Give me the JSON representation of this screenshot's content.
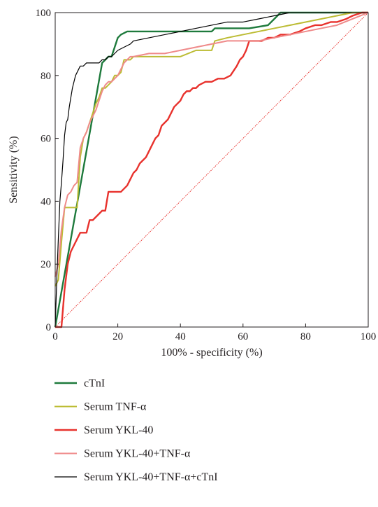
{
  "chart_data": {
    "type": "line",
    "xlabel": "100% - specificity (%)",
    "ylabel": "Sensitivity (%)",
    "xlim": [
      0,
      100
    ],
    "ylim": [
      0,
      100
    ],
    "xticks": [
      0,
      20,
      40,
      60,
      80,
      100
    ],
    "yticks": [
      0,
      20,
      40,
      60,
      80,
      100
    ],
    "xtick_labels": [
      "0",
      "20",
      "40",
      "60",
      "80",
      "100"
    ],
    "ytick_labels": [
      "0",
      "20",
      "40",
      "60",
      "80",
      "100"
    ],
    "grid": false,
    "legend_position": "bottom",
    "reference_line": {
      "x": [
        0,
        100
      ],
      "y": [
        0,
        100
      ],
      "color": "#e8322d",
      "style": "dotted"
    },
    "series": [
      {
        "name": "cTnI",
        "color": "#1e7a3c",
        "x": [
          0,
          15,
          17,
          18,
          20,
          21,
          23,
          30,
          40,
          50,
          51,
          60,
          62,
          68,
          70,
          72,
          75,
          80,
          100
        ],
        "y": [
          0,
          84,
          86,
          86,
          92,
          93,
          94,
          94,
          94,
          94,
          95,
          95,
          95,
          96,
          98,
          100,
          100,
          100,
          100
        ]
      },
      {
        "name": "Serum TNF-α",
        "color": "#bcbc34",
        "x": [
          0,
          1,
          2,
          3,
          5,
          7,
          8,
          9,
          10,
          11,
          12,
          13,
          14,
          15,
          16,
          17,
          18,
          19,
          20,
          21,
          22,
          24,
          25,
          28,
          30,
          35,
          40,
          45,
          50,
          51,
          55,
          60,
          65,
          70,
          75,
          80,
          85,
          90,
          95,
          100
        ],
        "y": [
          13,
          15,
          27,
          38,
          38,
          38,
          54,
          60,
          62,
          65,
          68,
          71,
          73,
          76,
          76,
          77,
          78,
          80,
          80,
          81,
          85,
          85,
          86,
          86,
          86,
          86,
          86,
          88,
          88,
          91,
          92,
          93,
          94,
          95,
          96,
          97,
          98,
          99,
          100,
          100
        ]
      },
      {
        "name": "Serum YKL-40",
        "color": "#e8322d",
        "x": [
          0,
          2,
          3,
          4,
          5,
          6,
          7,
          8,
          9,
          10,
          11,
          12,
          13,
          14,
          15,
          16,
          17,
          18,
          19,
          20,
          21,
          22,
          23,
          24,
          25,
          26,
          27,
          28,
          29,
          30,
          31,
          32,
          33,
          34,
          35,
          36,
          37,
          38,
          39,
          40,
          41,
          42,
          43,
          44,
          45,
          46,
          48,
          50,
          52,
          54,
          56,
          58,
          59,
          60,
          61,
          62,
          64,
          66,
          68,
          70,
          72,
          75,
          78,
          80,
          83,
          85,
          88,
          90,
          93,
          95,
          98,
          100
        ],
        "y": [
          0,
          0,
          12,
          20,
          24,
          26,
          28,
          30,
          30,
          30,
          34,
          34,
          35,
          36,
          37,
          37,
          43,
          43,
          43,
          43,
          43,
          44,
          45,
          47,
          49,
          50,
          52,
          53,
          54,
          56,
          58,
          60,
          61,
          64,
          65,
          66,
          68,
          70,
          71,
          72,
          74,
          75,
          75,
          76,
          76,
          77,
          78,
          78,
          79,
          79,
          80,
          83,
          85,
          86,
          88,
          91,
          91,
          91,
          92,
          92,
          93,
          93,
          94,
          95,
          96,
          96,
          97,
          97,
          98,
          99,
          100,
          100
        ]
      },
      {
        "name": "Serum YKL-40+TNF-α",
        "color": "#ef8a8a",
        "x": [
          0,
          1,
          2,
          3,
          4,
          5,
          6,
          7,
          8,
          9,
          10,
          11,
          12,
          13,
          14,
          15,
          16,
          17,
          18,
          19,
          20,
          21,
          22,
          23,
          24,
          25,
          30,
          35,
          40,
          45,
          50,
          55,
          60,
          65,
          70,
          75,
          80,
          85,
          90,
          95,
          100
        ],
        "y": [
          16,
          20,
          31,
          38,
          42,
          43,
          45,
          46,
          57,
          60,
          62,
          65,
          67,
          69,
          72,
          75,
          77,
          78,
          78,
          79,
          80,
          82,
          84,
          85,
          86,
          86,
          87,
          87,
          88,
          89,
          90,
          91,
          91,
          91,
          92,
          93,
          94,
          95,
          96,
          98,
          100
        ]
      },
      {
        "name": "Serum YKL-40+TNF-α+cTnI",
        "color": "#000000",
        "x": [
          0,
          0.5,
          1,
          1.5,
          2,
          2.5,
          3,
          3.5,
          4,
          4.5,
          5,
          5.5,
          6,
          6.5,
          7,
          7.5,
          8,
          9,
          10,
          11,
          12,
          13,
          14,
          15,
          16,
          17,
          18,
          19,
          20,
          22,
          24,
          25,
          30,
          35,
          40,
          45,
          50,
          55,
          60,
          65,
          70,
          75,
          80,
          85,
          90,
          95,
          100
        ],
        "y": [
          0,
          15,
          28,
          40,
          46,
          53,
          61,
          65,
          66,
          70,
          73,
          76,
          78,
          80,
          81,
          82,
          83,
          83,
          84,
          84,
          84,
          84,
          84,
          85,
          85,
          86,
          86,
          87,
          88,
          89,
          90,
          91,
          92,
          93,
          94,
          95,
          96,
          97,
          97,
          98,
          99,
          100,
          100,
          100,
          100,
          100,
          100
        ]
      }
    ]
  }
}
